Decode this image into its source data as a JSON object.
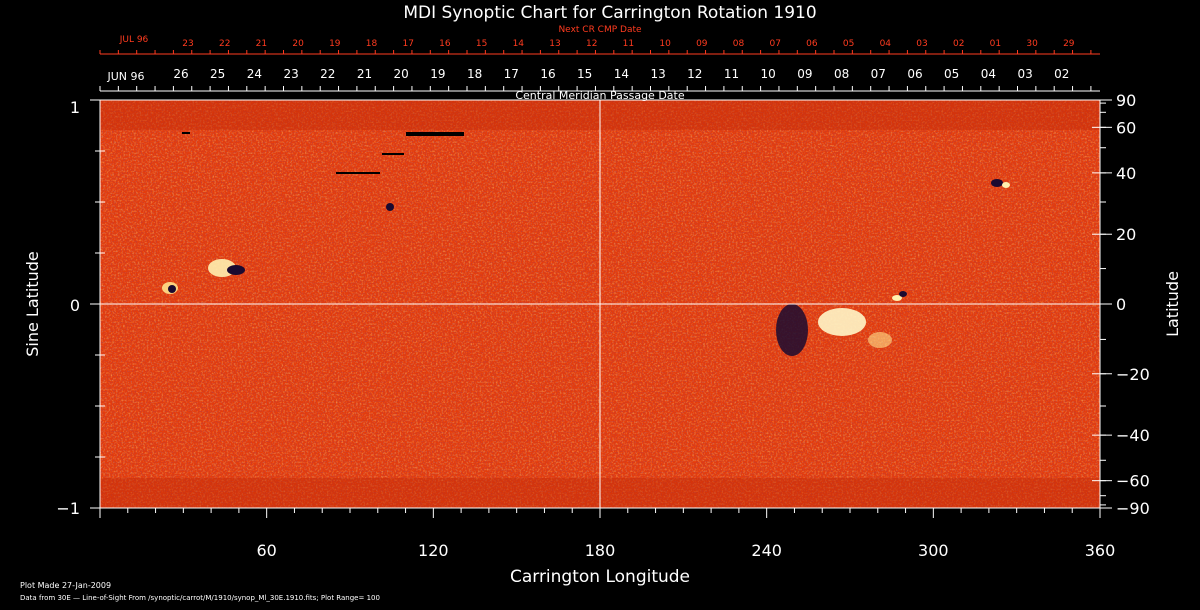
{
  "title": "MDI Synoptic Chart for Carrington Rotation 1910",
  "top_scale": {
    "label": "Next CR CMP Date",
    "month_label": "JUL 96",
    "days": [
      "23",
      "22",
      "21",
      "20",
      "19",
      "18",
      "17",
      "16",
      "15",
      "14",
      "13",
      "12",
      "11",
      "10",
      "09",
      "08",
      "07",
      "06",
      "05",
      "04",
      "03",
      "02",
      "01",
      "30",
      "29"
    ],
    "color": "#ff3b1f"
  },
  "cmp_scale": {
    "label": "Central Meridian Passage Date",
    "month_label": "JUN 96",
    "days": [
      "26",
      "25",
      "24",
      "23",
      "22",
      "21",
      "20",
      "19",
      "18",
      "17",
      "16",
      "15",
      "14",
      "13",
      "12",
      "11",
      "10",
      "09",
      "08",
      "07",
      "06",
      "05",
      "04",
      "03",
      "02"
    ]
  },
  "left_axis": {
    "label": "Sine Latitude",
    "ticks": [
      "1",
      "0",
      "−1"
    ]
  },
  "right_axis": {
    "label": "Latitude",
    "ticks": [
      "90",
      "60",
      "40",
      "20",
      "0",
      "−20",
      "−40",
      "−60",
      "−90"
    ],
    "values": [
      90,
      60,
      40,
      20,
      0,
      -20,
      -40,
      -60,
      -90
    ]
  },
  "bottom_axis": {
    "label": "Carrington Longitude",
    "ticks": [
      "60",
      "120",
      "180",
      "240",
      "300",
      "360"
    ],
    "values": [
      60,
      120,
      180,
      240,
      300,
      360
    ],
    "range": [
      0,
      360
    ]
  },
  "footer": {
    "plot_made": "Plot Made 27-Jan-2009",
    "source": "Data from 30E — Line-of-Sight From /synoptic/carrot/M/1910/synop_Ml_30E.1910.fits; Plot Range=  100"
  },
  "colors": {
    "background": "#000000",
    "map_base": "#e63c0a",
    "map_bright": "#ffd86b",
    "map_dark": "#2a1040",
    "accent_red": "#ff3b1f"
  }
}
